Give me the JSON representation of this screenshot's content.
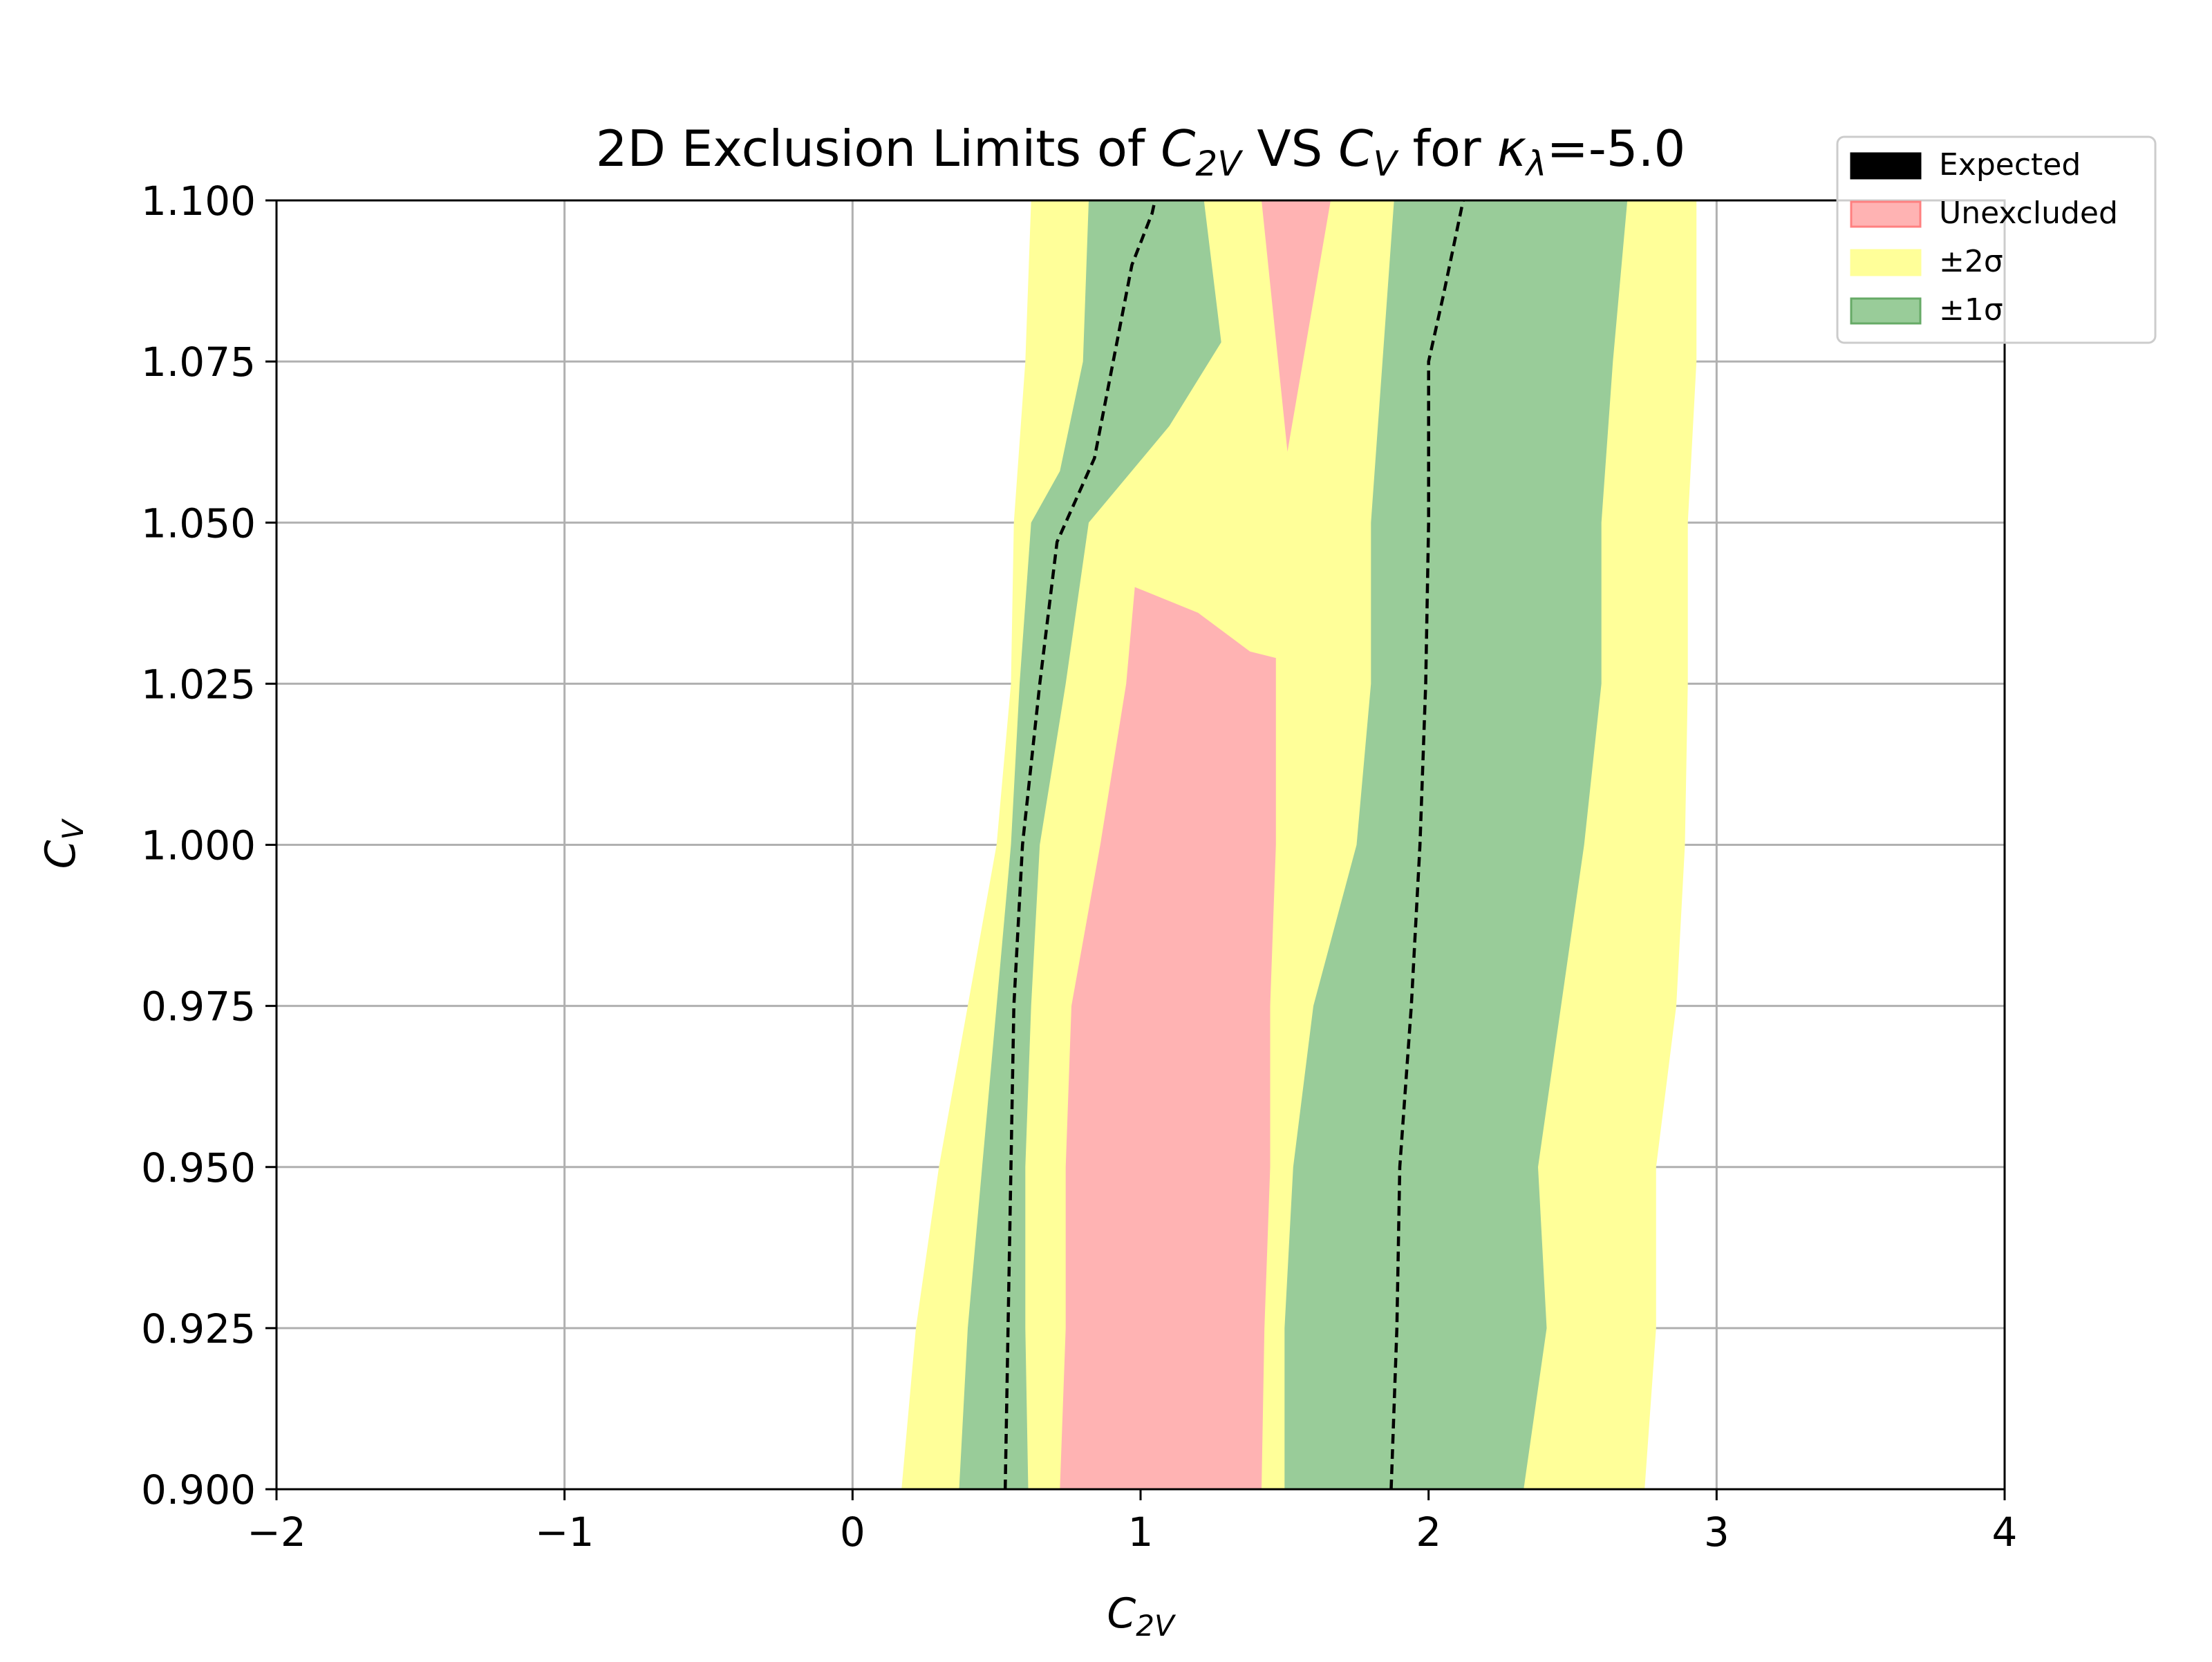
{
  "chart_data": {
    "type": "area",
    "title": {
      "prefix": "2D Exclusion Limits of ",
      "x_symbol": "C",
      "x_sub": "2V",
      "middle": " VS ",
      "y_symbol": "C",
      "y_sub": "V",
      "suffix_for": " for ",
      "kappa_symbol": "κ",
      "kappa_sub": "λ",
      "kappa_value": "=-5.0"
    },
    "xlabel": {
      "symbol": "C",
      "sub": "2V"
    },
    "ylabel": {
      "symbol": "C",
      "sub": "V"
    },
    "xlim": [
      -2,
      4
    ],
    "ylim": [
      0.9,
      1.1
    ],
    "x_ticks": [
      -2,
      -1,
      0,
      1,
      2,
      3,
      4
    ],
    "x_tick_labels": [
      "−2",
      "−1",
      "0",
      "1",
      "2",
      "3",
      "4"
    ],
    "y_ticks": [
      0.9,
      0.925,
      0.95,
      0.975,
      1.0,
      1.025,
      1.05,
      1.075,
      1.1
    ],
    "y_tick_labels": [
      "0.900",
      "0.925",
      "0.950",
      "0.975",
      "1.000",
      "1.025",
      "1.050",
      "1.075",
      "1.100"
    ],
    "grid": true,
    "legend_position": "top-right",
    "legend": [
      {
        "label": "Expected",
        "kind": "expected"
      },
      {
        "label": "Unexcluded",
        "kind": "unexcluded"
      },
      {
        "label": "±2σ",
        "kind": "two_sigma"
      },
      {
        "label": "±1σ",
        "kind": "one_sigma"
      }
    ],
    "colors": {
      "expected": "#000000",
      "unexcluded": "#ffb3b3",
      "unexcluded_edge": "#ff8080",
      "two_sigma": "#ffff99",
      "one_sigma": "#99cc99",
      "one_sigma_edge": "#66aa66",
      "grid": "#b0b0b0"
    },
    "regions": {
      "two_sigma": [
        [
          [
            0.17,
            0.9
          ],
          [
            2.75,
            0.9
          ],
          [
            2.79,
            0.925
          ],
          [
            2.79,
            0.95
          ],
          [
            2.86,
            0.975
          ],
          [
            2.89,
            1.0
          ],
          [
            2.9,
            1.025
          ],
          [
            2.9,
            1.05
          ],
          [
            2.93,
            1.075
          ],
          [
            2.93,
            1.1
          ],
          [
            0.62,
            1.1
          ],
          [
            0.6,
            1.075
          ],
          [
            0.56,
            1.05
          ],
          [
            0.55,
            1.025
          ],
          [
            0.5,
            1.0
          ],
          [
            0.4,
            0.975
          ],
          [
            0.3,
            0.95
          ],
          [
            0.22,
            0.925
          ],
          [
            0.17,
            0.9
          ]
        ]
      ],
      "one_sigma": [
        [
          [
            0.37,
            0.9
          ],
          [
            0.61,
            0.9
          ],
          [
            0.6,
            0.925
          ],
          [
            0.6,
            0.95
          ],
          [
            0.62,
            0.975
          ],
          [
            0.65,
            1.0
          ],
          [
            0.74,
            1.025
          ],
          [
            0.82,
            1.05
          ],
          [
            1.1,
            1.065
          ],
          [
            1.28,
            1.078
          ],
          [
            1.22,
            1.1
          ],
          [
            0.82,
            1.1
          ],
          [
            0.8,
            1.075
          ],
          [
            0.72,
            1.058
          ],
          [
            0.62,
            1.05
          ],
          [
            0.58,
            1.025
          ],
          [
            0.55,
            1.0
          ],
          [
            0.5,
            0.975
          ],
          [
            0.45,
            0.95
          ],
          [
            0.4,
            0.925
          ],
          [
            0.37,
            0.9
          ]
        ],
        [
          [
            1.5,
            0.9
          ],
          [
            2.33,
            0.9
          ],
          [
            2.41,
            0.925
          ],
          [
            2.38,
            0.95
          ],
          [
            2.46,
            0.975
          ],
          [
            2.54,
            1.0
          ],
          [
            2.6,
            1.025
          ],
          [
            2.6,
            1.05
          ],
          [
            2.64,
            1.075
          ],
          [
            2.69,
            1.1
          ],
          [
            1.88,
            1.1
          ],
          [
            1.84,
            1.075
          ],
          [
            1.8,
            1.05
          ],
          [
            1.8,
            1.025
          ],
          [
            1.75,
            1.0
          ],
          [
            1.6,
            0.975
          ],
          [
            1.53,
            0.95
          ],
          [
            1.5,
            0.925
          ],
          [
            1.5,
            0.9
          ]
        ]
      ],
      "unexcluded": [
        [
          [
            0.72,
            0.9
          ],
          [
            1.42,
            0.9
          ],
          [
            1.43,
            0.925
          ],
          [
            1.45,
            0.95
          ],
          [
            1.45,
            0.975
          ],
          [
            1.47,
            1.0
          ],
          [
            1.47,
            1.029
          ],
          [
            1.38,
            1.03
          ],
          [
            1.2,
            1.036
          ],
          [
            0.98,
            1.04
          ],
          [
            0.95,
            1.025
          ],
          [
            0.86,
            1.0
          ],
          [
            0.76,
            0.975
          ],
          [
            0.74,
            0.95
          ],
          [
            0.74,
            0.925
          ],
          [
            0.72,
            0.9
          ]
        ],
        [
          [
            1.42,
            1.1
          ],
          [
            1.66,
            1.1
          ],
          [
            1.51,
            1.061
          ],
          [
            1.42,
            1.1
          ]
        ]
      ]
    },
    "expected_lines": [
      [
        [
          0.53,
          0.9
        ],
        [
          0.54,
          0.925
        ],
        [
          0.55,
          0.95
        ],
        [
          0.56,
          0.975
        ],
        [
          0.59,
          1.0
        ],
        [
          0.65,
          1.025
        ],
        [
          0.71,
          1.047
        ],
        [
          0.84,
          1.06
        ],
        [
          0.97,
          1.09
        ],
        [
          1.04,
          1.098
        ],
        [
          1.05,
          1.1
        ]
      ],
      [
        [
          1.87,
          0.9
        ],
        [
          1.89,
          0.925
        ],
        [
          1.9,
          0.95
        ],
        [
          1.94,
          0.975
        ],
        [
          1.97,
          1.0
        ],
        [
          1.99,
          1.025
        ],
        [
          2.0,
          1.05
        ],
        [
          2.0,
          1.075
        ],
        [
          2.05,
          1.085
        ],
        [
          2.12,
          1.1
        ]
      ]
    ]
  }
}
